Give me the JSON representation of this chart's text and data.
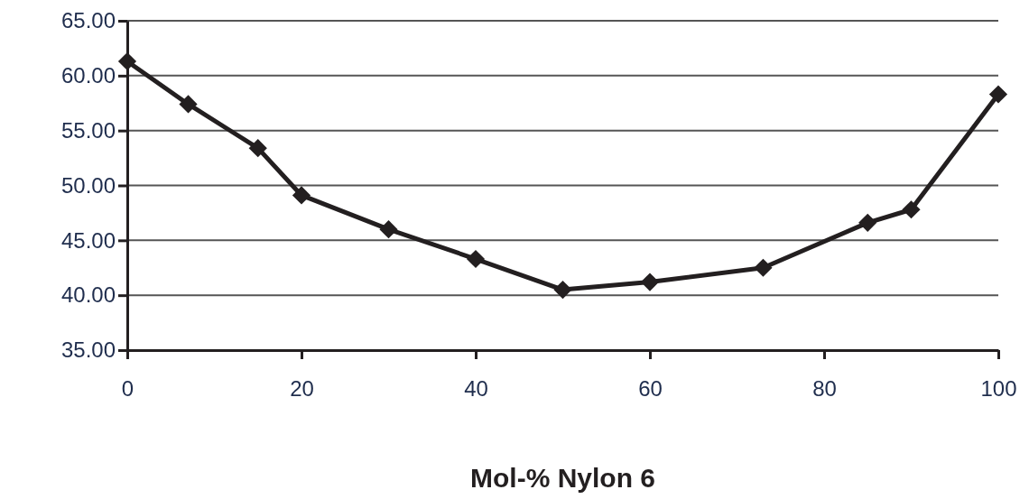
{
  "chart_data": {
    "type": "line",
    "xlabel": "Mol-% Nylon 6",
    "x": [
      0,
      7,
      15,
      20,
      30,
      40,
      50,
      60,
      73,
      85,
      90,
      100
    ],
    "series": [
      {
        "color": "#231f20",
        "values": [
          61.3,
          57.4,
          53.4,
          49.1,
          46.0,
          43.3,
          40.5,
          41.2,
          42.5,
          46.6,
          47.8,
          58.3
        ]
      }
    ],
    "xlim": [
      0,
      100
    ],
    "xticks": [
      0,
      20,
      40,
      60,
      80,
      100
    ],
    "ylim": [
      35,
      65
    ],
    "yticks": [
      {
        "value": 35,
        "label": "35.00"
      },
      {
        "value": 40,
        "label": "40.00"
      },
      {
        "value": 45,
        "label": "45.00"
      },
      {
        "value": 50,
        "label": "50.00"
      },
      {
        "value": 55,
        "label": "55.00"
      },
      {
        "value": 60,
        "label": "60.00"
      },
      {
        "value": 65,
        "label": "65.00"
      }
    ],
    "grid": "y",
    "marker": "diamond",
    "line_style": "solid"
  }
}
